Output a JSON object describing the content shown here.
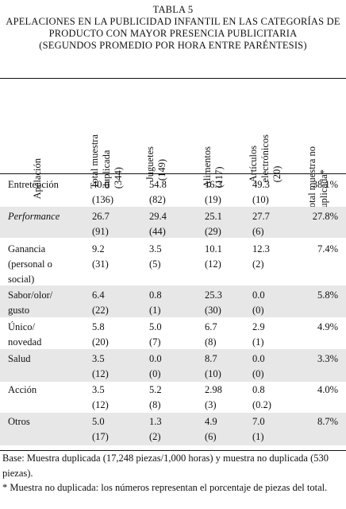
{
  "caption": {
    "title": "TABLA 5",
    "line1": "APELACIONES EN LA PUBLICIDAD INFANTIL EN LAS CATEGORÍAS DE",
    "line2": "PRODUCTO CON MAYOR PRESENCIA PUBLICITARIA",
    "line3": "(SEGUNDOS PROMEDIO POR HORA ENTRE PARÉNTESIS)"
  },
  "columns": {
    "c0": [
      "Apelación"
    ],
    "c1": [
      "Total muestra",
      "duplicada",
      "(344)"
    ],
    "c2": [
      "Juguetes",
      "(149)"
    ],
    "c3": [
      "Alimentos",
      "(117)"
    ],
    "c4": [
      "Artículos",
      "electrónicos",
      "(20)"
    ],
    "c5": [
      "Total muestra no",
      "duplicada*"
    ]
  },
  "rows": [
    {
      "label": [
        "Entretención"
      ],
      "italic": false,
      "v": [
        "40.0",
        "54.8",
        "16.3",
        "49.3"
      ],
      "p": [
        "(136)",
        "(82)",
        "(19)",
        "(10)"
      ],
      "t": "38.1%"
    },
    {
      "label": [
        "Performance"
      ],
      "italic": true,
      "v": [
        "26.7",
        "29.4",
        "25.1",
        "27.7"
      ],
      "p": [
        "(91)",
        "(44)",
        "(29)",
        "(6)"
      ],
      "t": "27.8%"
    },
    {
      "label": [
        "Ganancia",
        "(personal o",
        "social)"
      ],
      "italic": false,
      "v": [
        "9.2",
        "3.5",
        "10.1",
        "12.3"
      ],
      "p": [
        "(31)",
        "(5)",
        "(12)",
        "(2)"
      ],
      "t": "7.4%"
    },
    {
      "label": [
        "Sabor/olor/",
        "gusto"
      ],
      "italic": false,
      "v": [
        "6.4",
        "0.8",
        "25.3",
        "0.0"
      ],
      "p": [
        "(22)",
        "(1)",
        "(30)",
        "(0)"
      ],
      "t": "5.8%"
    },
    {
      "label": [
        "Único/",
        "novedad"
      ],
      "italic": false,
      "v": [
        "5.8",
        "5.0",
        "6.7",
        "2.9"
      ],
      "p": [
        "(20)",
        "(7)",
        "(8)",
        "(1)"
      ],
      "t": "4.9%"
    },
    {
      "label": [
        "Salud"
      ],
      "italic": false,
      "v": [
        "3.5",
        "0.0",
        "8.7",
        "0.0"
      ],
      "p": [
        "(12)",
        "(0)",
        "(10)",
        "(0)"
      ],
      "t": "3.3%"
    },
    {
      "label": [
        "Acción"
      ],
      "italic": false,
      "v": [
        "3.5",
        "5.2",
        "2.98",
        "0.8"
      ],
      "p": [
        "(12)",
        "(8)",
        "(3)",
        "(0.2)"
      ],
      "t": "4.0%"
    },
    {
      "label": [
        "Otros"
      ],
      "italic": false,
      "v": [
        "5.0",
        "1.3",
        "4.9",
        "7.0"
      ],
      "p": [
        "(17)",
        "(2)",
        "(6)",
        "(1)"
      ],
      "t": "8.7%"
    }
  ],
  "notes": {
    "base": "Base: Muestra duplicada (17,248 piezas/1,000 horas) y muestra no duplicada (530 piezas).",
    "star": "* Muestra no duplicada: los números representan el porcentaje de piezas del total."
  }
}
